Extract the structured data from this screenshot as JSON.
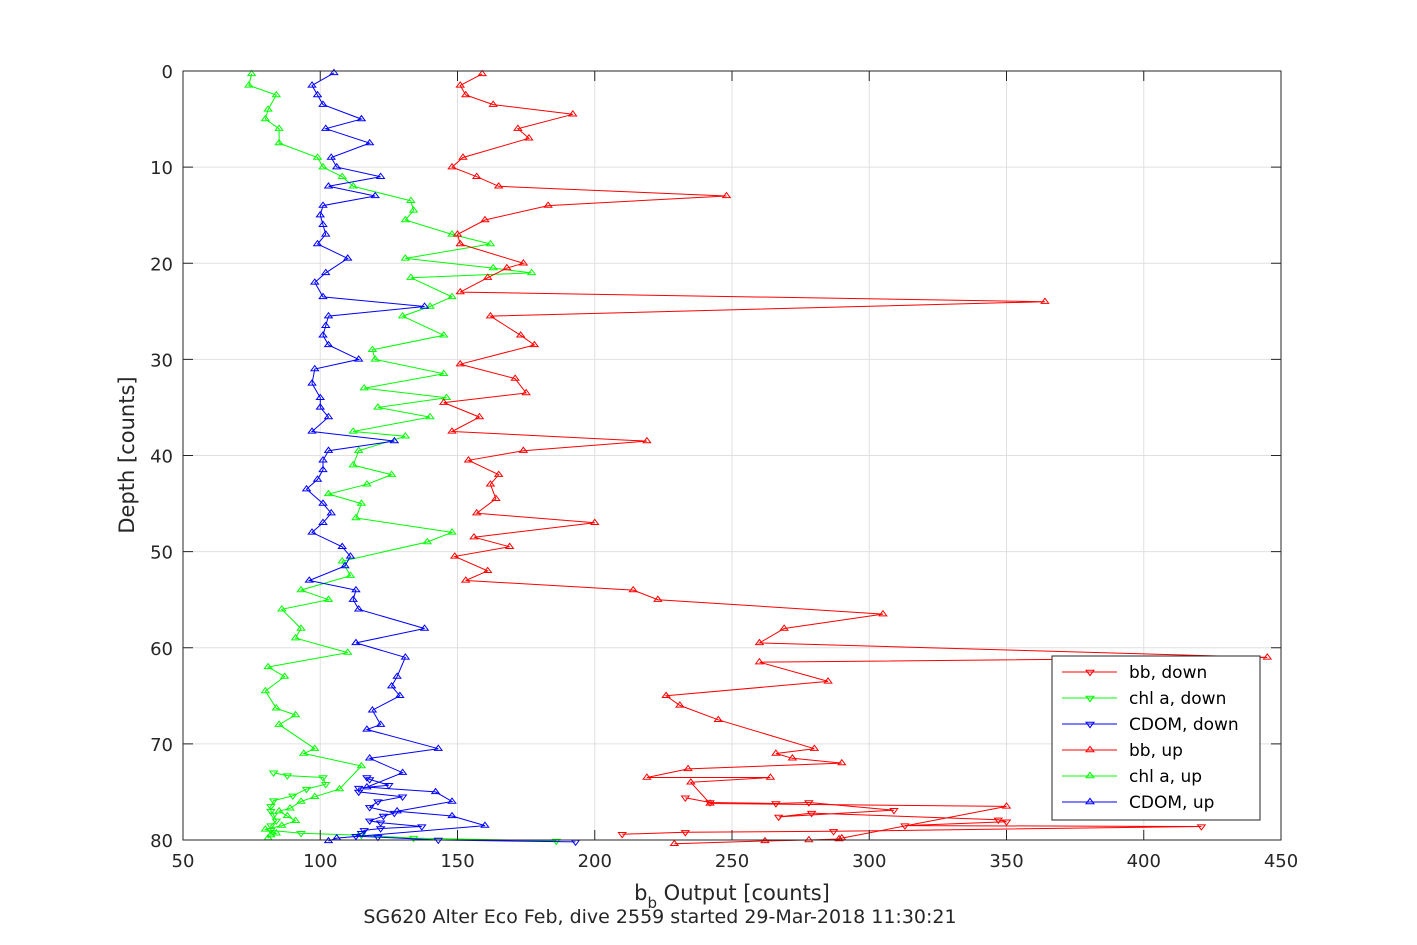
{
  "chart_data": {
    "type": "line",
    "title": "",
    "xlabel_main": "b",
    "xlabel_sub": "b",
    "xlabel_rest": " Output [counts]",
    "ylabel": "Depth [counts]",
    "caption": "SG620 Alter Eco Feb, dive 2559 started 29-Mar-2018 11:30:21",
    "xlim": [
      50,
      450
    ],
    "ylim": [
      0,
      80
    ],
    "y_reversed": true,
    "grid": true,
    "legend_position": "lower-right",
    "x_ticks": [
      "50",
      "100",
      "150",
      "200",
      "250",
      "300",
      "350",
      "400",
      "450"
    ],
    "y_ticks": [
      "0",
      "10",
      "20",
      "30",
      "40",
      "50",
      "60",
      "70",
      "80"
    ],
    "series": [
      {
        "name": "bb, down",
        "color": "#ff0000",
        "marker": "triangle-down",
        "points": [
          [
            210,
            79.4
          ],
          [
            233,
            79.2
          ],
          [
            287,
            79.1
          ],
          [
            421,
            78.6
          ],
          [
            313,
            78.5
          ],
          [
            350,
            78.1
          ],
          [
            347,
            77.9
          ],
          [
            279,
            77.2
          ],
          [
            267,
            77.6
          ],
          [
            309,
            76.9
          ],
          [
            278,
            76.1
          ],
          [
            266,
            76.2
          ],
          [
            242,
            76.1
          ],
          [
            233,
            75.6
          ]
        ]
      },
      {
        "name": "chl a, down",
        "color": "#00ff00",
        "marker": "triangle-down",
        "points": [
          [
            186,
            80.1
          ],
          [
            134,
            79.8
          ],
          [
            115,
            79.5
          ],
          [
            93,
            79.3
          ],
          [
            82,
            79.0
          ],
          [
            82,
            78.5
          ],
          [
            84,
            78.0
          ],
          [
            83,
            77.4
          ],
          [
            82,
            77.0
          ],
          [
            82,
            76.5
          ],
          [
            83,
            75.9
          ],
          [
            90,
            75.4
          ],
          [
            95,
            74.7
          ],
          [
            102,
            74.2
          ],
          [
            101,
            73.5
          ],
          [
            88,
            73.3
          ],
          [
            83,
            73.0
          ]
        ]
      },
      {
        "name": "CDOM, down",
        "color": "#0000ff",
        "marker": "triangle-down",
        "points": [
          [
            193,
            80.2
          ],
          [
            143,
            80.0
          ],
          [
            121,
            79.7
          ],
          [
            113,
            79.6
          ],
          [
            115,
            79.3
          ],
          [
            116,
            79.0
          ],
          [
            122,
            78.8
          ],
          [
            137,
            78.6
          ],
          [
            122,
            78.2
          ],
          [
            118,
            78.0
          ],
          [
            123,
            77.5
          ],
          [
            127,
            77.2
          ],
          [
            118,
            76.6
          ],
          [
            121,
            76.0
          ],
          [
            130,
            75.5
          ],
          [
            114,
            75.0
          ],
          [
            114,
            74.6
          ],
          [
            125,
            74.3
          ],
          [
            118,
            73.7
          ],
          [
            117,
            73.5
          ]
        ]
      },
      {
        "name": "bb, up",
        "color": "#ff0000",
        "marker": "triangle-up",
        "points": [
          [
            229,
            80.4
          ],
          [
            262,
            80.1
          ],
          [
            278,
            80.0
          ],
          [
            289,
            79.9
          ],
          [
            290,
            79.8
          ],
          [
            350,
            76.5
          ],
          [
            242,
            76.2
          ],
          [
            235,
            74.0
          ],
          [
            264,
            73.5
          ],
          [
            219,
            73.5
          ],
          [
            234,
            72.6
          ],
          [
            290,
            72.0
          ],
          [
            272,
            71.5
          ],
          [
            266,
            71.0
          ],
          [
            280,
            70.5
          ],
          [
            245,
            67.5
          ],
          [
            231,
            66.0
          ],
          [
            226,
            65.0
          ],
          [
            285,
            63.5
          ],
          [
            260,
            61.5
          ],
          [
            445,
            61.0
          ],
          [
            260,
            59.5
          ],
          [
            269,
            58.0
          ],
          [
            305,
            56.5
          ],
          [
            223,
            55.0
          ],
          [
            214,
            54.0
          ],
          [
            153,
            53.0
          ],
          [
            161,
            52.0
          ],
          [
            149,
            50.5
          ],
          [
            169,
            49.5
          ],
          [
            156,
            48.5
          ],
          [
            200,
            47.0
          ],
          [
            157,
            46.0
          ],
          [
            164,
            44.5
          ],
          [
            162,
            43.0
          ],
          [
            165,
            42.0
          ],
          [
            154,
            40.5
          ],
          [
            174,
            39.5
          ],
          [
            219,
            38.5
          ],
          [
            148,
            37.5
          ],
          [
            158,
            36.0
          ],
          [
            145,
            34.5
          ],
          [
            175,
            33.5
          ],
          [
            171,
            32.0
          ],
          [
            151,
            30.5
          ],
          [
            178,
            28.5
          ],
          [
            173,
            27.5
          ],
          [
            162,
            25.5
          ],
          [
            364,
            24.0
          ],
          [
            151,
            23.0
          ],
          [
            161,
            21.5
          ],
          [
            168,
            20.5
          ],
          [
            174,
            20.0
          ],
          [
            151,
            18.0
          ],
          [
            150,
            17.0
          ],
          [
            160,
            15.5
          ],
          [
            183,
            14.0
          ],
          [
            248,
            13.0
          ],
          [
            165,
            12.0
          ],
          [
            157,
            11.0
          ],
          [
            148,
            10.0
          ],
          [
            152,
            9.0
          ],
          [
            176,
            7.0
          ],
          [
            172,
            6.0
          ],
          [
            192,
            4.5
          ],
          [
            163,
            3.5
          ],
          [
            153,
            2.5
          ],
          [
            151,
            1.5
          ],
          [
            159,
            0.3
          ]
        ]
      },
      {
        "name": "chl a, up",
        "color": "#00ff00",
        "marker": "triangle-up",
        "points": [
          [
            81,
            79.8
          ],
          [
            82,
            79.5
          ],
          [
            84,
            79.3
          ],
          [
            80,
            78.9
          ],
          [
            86,
            78.5
          ],
          [
            91,
            78.0
          ],
          [
            88,
            77.5
          ],
          [
            85,
            77.0
          ],
          [
            89,
            76.7
          ],
          [
            93,
            76.0
          ],
          [
            98,
            75.5
          ],
          [
            107,
            74.7
          ],
          [
            115,
            72.3
          ],
          [
            94,
            71.0
          ],
          [
            98,
            70.5
          ],
          [
            85,
            68.0
          ],
          [
            91,
            67.0
          ],
          [
            84,
            66.3
          ],
          [
            80,
            64.5
          ],
          [
            87,
            63.0
          ],
          [
            81,
            62.0
          ],
          [
            110,
            60.5
          ],
          [
            91,
            59.0
          ],
          [
            93,
            58.0
          ],
          [
            86,
            56.0
          ],
          [
            103,
            55.0
          ],
          [
            93,
            54.0
          ],
          [
            111,
            52.5
          ],
          [
            108,
            51.0
          ],
          [
            139,
            49.0
          ],
          [
            148,
            48.0
          ],
          [
            113,
            46.5
          ],
          [
            115,
            45.0
          ],
          [
            103,
            44.0
          ],
          [
            117,
            43.0
          ],
          [
            126,
            42.0
          ],
          [
            112,
            41.0
          ],
          [
            114,
            39.5
          ],
          [
            131,
            38.0
          ],
          [
            112,
            37.5
          ],
          [
            140,
            36.0
          ],
          [
            121,
            35.0
          ],
          [
            146,
            34.0
          ],
          [
            116,
            33.0
          ],
          [
            145,
            31.5
          ],
          [
            120,
            30.0
          ],
          [
            119,
            29.0
          ],
          [
            145,
            27.5
          ],
          [
            130,
            25.5
          ],
          [
            140,
            24.5
          ],
          [
            148,
            23.5
          ],
          [
            133,
            21.5
          ],
          [
            177,
            21.0
          ],
          [
            163,
            20.5
          ],
          [
            131,
            19.5
          ],
          [
            162,
            18.0
          ],
          [
            148,
            17.0
          ],
          [
            131,
            15.5
          ],
          [
            134,
            14.5
          ],
          [
            133,
            13.5
          ],
          [
            112,
            12.0
          ],
          [
            108,
            11.0
          ],
          [
            101,
            10.0
          ],
          [
            99,
            9.0
          ],
          [
            85,
            7.5
          ],
          [
            85,
            6.0
          ],
          [
            80,
            5.0
          ],
          [
            81,
            4.0
          ],
          [
            84,
            2.5
          ],
          [
            74,
            1.5
          ],
          [
            75,
            0.3
          ]
        ]
      },
      {
        "name": "CDOM, up",
        "color": "#0000ff",
        "marker": "triangle-up",
        "points": [
          [
            103,
            80.1
          ],
          [
            106,
            79.8
          ],
          [
            160,
            78.5
          ],
          [
            148,
            77.5
          ],
          [
            128,
            77.0
          ],
          [
            148,
            76.0
          ],
          [
            142,
            75.0
          ],
          [
            117,
            74.5
          ],
          [
            130,
            73.0
          ],
          [
            118,
            71.5
          ],
          [
            143,
            70.5
          ],
          [
            117,
            68.5
          ],
          [
            122,
            68.0
          ],
          [
            119,
            66.5
          ],
          [
            129,
            65.0
          ],
          [
            126,
            64.0
          ],
          [
            128,
            63.0
          ],
          [
            131,
            61.0
          ],
          [
            113,
            59.5
          ],
          [
            138,
            58.0
          ],
          [
            114,
            56.0
          ],
          [
            112,
            55.0
          ],
          [
            113,
            54.0
          ],
          [
            96,
            53.0
          ],
          [
            109,
            51.5
          ],
          [
            111,
            50.5
          ],
          [
            108,
            49.5
          ],
          [
            97,
            48.0
          ],
          [
            101,
            47.0
          ],
          [
            104,
            46.0
          ],
          [
            101,
            45.0
          ],
          [
            95,
            43.5
          ],
          [
            99,
            42.5
          ],
          [
            101,
            41.5
          ],
          [
            101,
            40.5
          ],
          [
            103,
            39.5
          ],
          [
            127,
            38.5
          ],
          [
            97,
            37.5
          ],
          [
            103,
            36.0
          ],
          [
            100,
            35.0
          ],
          [
            100,
            34.0
          ],
          [
            97,
            32.5
          ],
          [
            98,
            31.0
          ],
          [
            114,
            30.0
          ],
          [
            103,
            28.5
          ],
          [
            101,
            27.5
          ],
          [
            102,
            26.5
          ],
          [
            103,
            25.5
          ],
          [
            138,
            24.5
          ],
          [
            101,
            23.5
          ],
          [
            98,
            22.0
          ],
          [
            102,
            21.0
          ],
          [
            110,
            19.5
          ],
          [
            99,
            18.0
          ],
          [
            102,
            17.0
          ],
          [
            101,
            16.0
          ],
          [
            100,
            15.0
          ],
          [
            101,
            14.0
          ],
          [
            120,
            13.0
          ],
          [
            103,
            12.0
          ],
          [
            122,
            11.0
          ],
          [
            106,
            10.0
          ],
          [
            104,
            9.0
          ],
          [
            118,
            7.5
          ],
          [
            102,
            6.0
          ],
          [
            115,
            5.0
          ],
          [
            101,
            3.5
          ],
          [
            99,
            2.5
          ],
          [
            97,
            1.5
          ],
          [
            105,
            0.2
          ]
        ]
      }
    ]
  }
}
